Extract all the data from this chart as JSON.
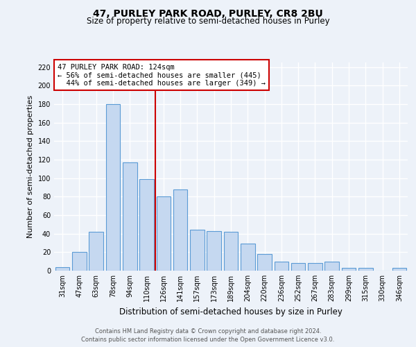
{
  "title1": "47, PURLEY PARK ROAD, PURLEY, CR8 2BU",
  "title2": "Size of property relative to semi-detached houses in Purley",
  "xlabel": "Distribution of semi-detached houses by size in Purley",
  "ylabel": "Number of semi-detached properties",
  "categories": [
    "31sqm",
    "47sqm",
    "63sqm",
    "78sqm",
    "94sqm",
    "110sqm",
    "126sqm",
    "141sqm",
    "157sqm",
    "173sqm",
    "189sqm",
    "204sqm",
    "220sqm",
    "236sqm",
    "252sqm",
    "267sqm",
    "283sqm",
    "299sqm",
    "315sqm",
    "330sqm",
    "346sqm"
  ],
  "values": [
    4,
    20,
    42,
    180,
    117,
    99,
    80,
    88,
    44,
    43,
    42,
    29,
    18,
    10,
    8,
    8,
    10,
    3,
    3,
    0,
    3
  ],
  "bar_color": "#c5d8f0",
  "bar_edge_color": "#5b9bd5",
  "vline_index": 6,
  "annotation_line1": "47 PURLEY PARK ROAD: 124sqm",
  "annotation_line2": "← 56% of semi-detached houses are smaller (445)",
  "annotation_line3": "  44% of semi-detached houses are larger (349) →",
  "vline_color": "#cc0000",
  "annotation_box_edgecolor": "#cc0000",
  "background_color": "#edf2f9",
  "grid_color": "#ffffff",
  "ylim": [
    0,
    225
  ],
  "yticks": [
    0,
    20,
    40,
    60,
    80,
    100,
    120,
    140,
    160,
    180,
    200,
    220
  ],
  "footer1": "Contains HM Land Registry data © Crown copyright and database right 2024.",
  "footer2": "Contains public sector information licensed under the Open Government Licence v3.0."
}
